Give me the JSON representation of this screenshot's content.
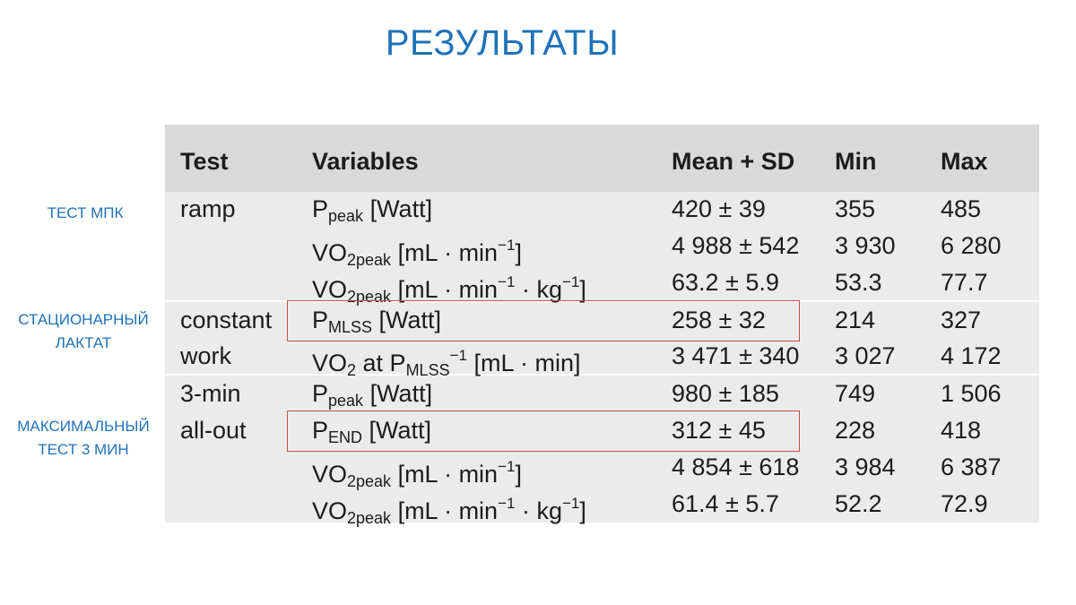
{
  "title": "РЕЗУЛЬТАТЫ",
  "side_labels": {
    "vo2max_test": [
      "ТЕСТ МПК"
    ],
    "steady_lactate": [
      "СТАЦИОНАРНЫЙ",
      "ЛАКТАТ"
    ],
    "max_test_3min": [
      "МАКСИМАЛЬНЫЙ",
      "ТЕСТ 3 МИН"
    ]
  },
  "table": {
    "headers": {
      "test": "Test",
      "variables": "Variables",
      "mean_sd": "Mean + SD",
      "min": "Min",
      "max": "Max"
    },
    "highlight_color": "#c0504d",
    "rows": [
      {
        "test": "ramp",
        "var": {
          "base": "P",
          "sub": "peak",
          "rest": " [Watt]"
        },
        "mean": "420 ± 39",
        "min": "355",
        "max": "485",
        "highlighted": false
      },
      {
        "test": "",
        "var": {
          "base": "VO",
          "sub": "2peak",
          "rest": " [mL · min",
          "sup": "−1",
          "rest2": "]"
        },
        "mean": "4 988 ± 542",
        "min": "3 930",
        "max": "6 280",
        "highlighted": false
      },
      {
        "test": "",
        "var": {
          "base": "VO",
          "sub": "2peak",
          "rest": " [mL · min",
          "sup": "−1",
          "rest2": " · kg",
          "sup2": "−1",
          "rest3": "]"
        },
        "mean": "63.2 ± 5.9",
        "min": "53.3",
        "max": "77.7",
        "highlighted": false
      },
      {
        "test": "constant",
        "var": {
          "base": "P",
          "sub": "MLSS",
          "rest": " [Watt]"
        },
        "mean": "258 ± 32",
        "min": "214",
        "max": "327",
        "highlighted": true
      },
      {
        "test": "work",
        "var": {
          "base": "VO",
          "sub": "2",
          "rest": " at P",
          "sub2": "MLSS",
          "rest2": " [mL · min",
          "sup": "−1",
          "rest3": "]"
        },
        "mean": "3 471 ± 340",
        "min": "3 027",
        "max": "4 172",
        "highlighted": false
      },
      {
        "test": "3-min",
        "var": {
          "base": "P",
          "sub": "peak",
          "rest": " [Watt]"
        },
        "mean": "980 ± 185",
        "min": "749",
        "max": "1 506",
        "highlighted": false
      },
      {
        "test": "all-out",
        "var": {
          "base": "P",
          "sub": "END",
          "rest": " [Watt]"
        },
        "mean": "312 ± 45",
        "min": "228",
        "max": "418",
        "highlighted": true
      },
      {
        "test": "",
        "var": {
          "base": "VO",
          "sub": "2peak",
          "rest": " [mL · min",
          "sup": "−1",
          "rest2": "]"
        },
        "mean": "4 854 ± 618",
        "min": "3 984",
        "max": "6 387",
        "highlighted": false
      },
      {
        "test": "",
        "var": {
          "base": "VO",
          "sub": "2peak",
          "rest": " [mL · min",
          "sup": "−1",
          "rest2": " · kg",
          "sup2": "−1",
          "rest3": "]"
        },
        "mean": "61.4 ± 5.7",
        "min": "52.2",
        "max": "72.9",
        "highlighted": false
      }
    ]
  }
}
